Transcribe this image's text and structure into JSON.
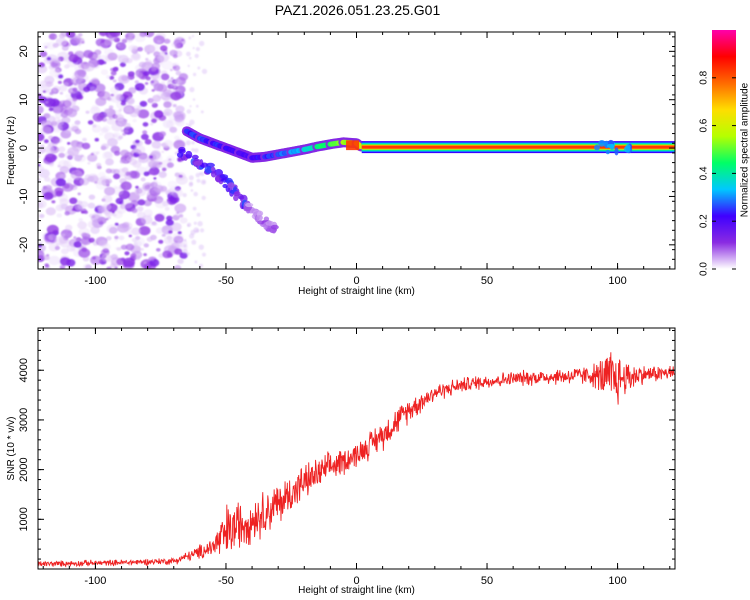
{
  "title": "PAZ1.2026.051.23.25.G01",
  "chart_data": [
    {
      "type": "heatmap",
      "xlabel": "Height of straight line (km)",
      "ylabel": "Frequency (Hz)",
      "xlim": [
        -122,
        122
      ],
      "ylim": [
        -25,
        24
      ],
      "xticks": [
        -100,
        -50,
        0,
        50,
        100
      ],
      "yticks": [
        -20,
        -10,
        0,
        10,
        20
      ],
      "colorbar": {
        "label": "Normalized spectral amplitude",
        "range": [
          0,
          1
        ],
        "ticks": [
          0.0,
          0.2,
          0.4,
          0.6,
          0.8
        ],
        "colormap": [
          "#ffffff",
          "#8a2be2",
          "#3f00ff",
          "#00c8ff",
          "#00ff66",
          "#b6ff00",
          "#ffdd00",
          "#ff6a00",
          "#ff0000",
          "#ff00aa"
        ]
      },
      "noise_region_x": [
        -122,
        -66
      ],
      "noise_region_y": [
        -25,
        24
      ],
      "main_track": [
        {
          "x": -65,
          "y": 3.5,
          "amp": 0.35
        },
        {
          "x": -60,
          "y": 2.0,
          "amp": 0.4
        },
        {
          "x": -55,
          "y": 1.0,
          "amp": 0.35
        },
        {
          "x": -50,
          "y": 0.0,
          "amp": 0.35
        },
        {
          "x": -45,
          "y": -1.0,
          "amp": 0.3
        },
        {
          "x": -40,
          "y": -2.0,
          "amp": 0.3
        },
        {
          "x": -35,
          "y": -1.8,
          "amp": 0.35
        },
        {
          "x": -30,
          "y": -1.3,
          "amp": 0.4
        },
        {
          "x": -25,
          "y": -0.8,
          "amp": 0.45
        },
        {
          "x": -20,
          "y": -0.3,
          "amp": 0.55
        },
        {
          "x": -15,
          "y": 0.3,
          "amp": 0.65
        },
        {
          "x": -10,
          "y": 0.8,
          "amp": 0.75
        },
        {
          "x": -5,
          "y": 1.2,
          "amp": 0.85
        },
        {
          "x": 0,
          "y": 1.0,
          "amp": 0.9
        },
        {
          "x": 2,
          "y": 0.2,
          "amp": 0.95
        },
        {
          "x": 122,
          "y": 0.2,
          "amp": 0.95
        }
      ],
      "secondary_track": [
        {
          "x": -68,
          "y": -0.5
        },
        {
          "x": -60,
          "y": -3.0
        },
        {
          "x": -55,
          "y": -5.0
        },
        {
          "x": -50,
          "y": -7.0
        },
        {
          "x": -46,
          "y": -9.5
        },
        {
          "x": -42,
          "y": -12.0
        },
        {
          "x": -38,
          "y": -14.0
        },
        {
          "x": -34,
          "y": -16.0
        },
        {
          "x": -30,
          "y": -17.0
        }
      ],
      "disturbance_x": [
        92,
        105
      ]
    },
    {
      "type": "line",
      "xlabel": "Height of straight line (km)",
      "ylabel": "SNR (10 * v/v)",
      "xlim": [
        -122,
        122
      ],
      "ylim": [
        0,
        4850
      ],
      "xticks": [
        -100,
        -50,
        0,
        50,
        100
      ],
      "yticks": [
        1000,
        2000,
        3000,
        4000
      ],
      "color": "#ee2222",
      "series": [
        {
          "name": "SNR",
          "profile": [
            {
              "x": -122,
              "y": 100,
              "noise": 60
            },
            {
              "x": -90,
              "y": 130,
              "noise": 60
            },
            {
              "x": -70,
              "y": 160,
              "noise": 70
            },
            {
              "x": -62,
              "y": 300,
              "noise": 120
            },
            {
              "x": -55,
              "y": 450,
              "noise": 220
            },
            {
              "x": -50,
              "y": 700,
              "noise": 600
            },
            {
              "x": -45,
              "y": 900,
              "noise": 500
            },
            {
              "x": -40,
              "y": 1000,
              "noise": 450
            },
            {
              "x": -30,
              "y": 1300,
              "noise": 450
            },
            {
              "x": -20,
              "y": 1750,
              "noise": 350
            },
            {
              "x": -10,
              "y": 2050,
              "noise": 300
            },
            {
              "x": 0,
              "y": 2300,
              "noise": 250
            },
            {
              "x": 10,
              "y": 2700,
              "noise": 300
            },
            {
              "x": 20,
              "y": 3200,
              "noise": 250
            },
            {
              "x": 30,
              "y": 3550,
              "noise": 180
            },
            {
              "x": 40,
              "y": 3700,
              "noise": 150
            },
            {
              "x": 50,
              "y": 3780,
              "noise": 150
            },
            {
              "x": 60,
              "y": 3830,
              "noise": 150
            },
            {
              "x": 70,
              "y": 3860,
              "noise": 160
            },
            {
              "x": 80,
              "y": 3880,
              "noise": 170
            },
            {
              "x": 90,
              "y": 3900,
              "noise": 200
            },
            {
              "x": 95,
              "y": 3850,
              "noise": 450
            },
            {
              "x": 98,
              "y": 3800,
              "noise": 700
            },
            {
              "x": 102,
              "y": 3850,
              "noise": 400
            },
            {
              "x": 110,
              "y": 3920,
              "noise": 180
            },
            {
              "x": 122,
              "y": 3950,
              "noise": 150
            }
          ]
        }
      ]
    }
  ]
}
